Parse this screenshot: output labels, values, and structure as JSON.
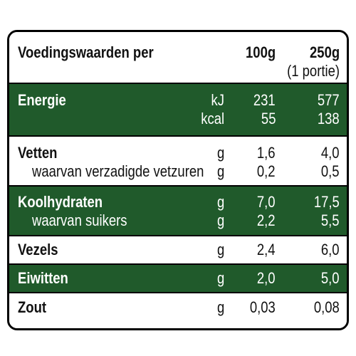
{
  "header": {
    "title": "Voedingswaarden per",
    "col1": "100g",
    "col2": "250g",
    "col2_sub": "(1 portie)"
  },
  "rows": {
    "energie": {
      "label": "Energie",
      "unit_kj": "kJ",
      "kj_100": "231",
      "kj_250": "577",
      "unit_kcal": "kcal",
      "kcal_100": "55",
      "kcal_250": "138"
    },
    "vetten": {
      "label": "Vetten",
      "unit": "g",
      "v100": "1,6",
      "v250": "4,0",
      "sub_label": "waarvan verzadigde vetzuren",
      "sub_unit": "g",
      "sub_100": "0,2",
      "sub_250": "0,5"
    },
    "koolhydraten": {
      "label": "Koolhydraten",
      "unit": "g",
      "v100": "7,0",
      "v250": "17,5",
      "sub_label": "waarvan suikers",
      "sub_unit": "g",
      "sub_100": "2,2",
      "sub_250": "5,5"
    },
    "vezels": {
      "label": "Vezels",
      "unit": "g",
      "v100": "2,4",
      "v250": "6,0"
    },
    "eiwitten": {
      "label": "Eiwitten",
      "unit": "g",
      "v100": "2,0",
      "v250": "5,0"
    },
    "zout": {
      "label": "Zout",
      "unit": "g",
      "v100": "0,03",
      "v250": "0,08"
    }
  },
  "colors": {
    "green": "#205a2b",
    "border": "#000000"
  }
}
